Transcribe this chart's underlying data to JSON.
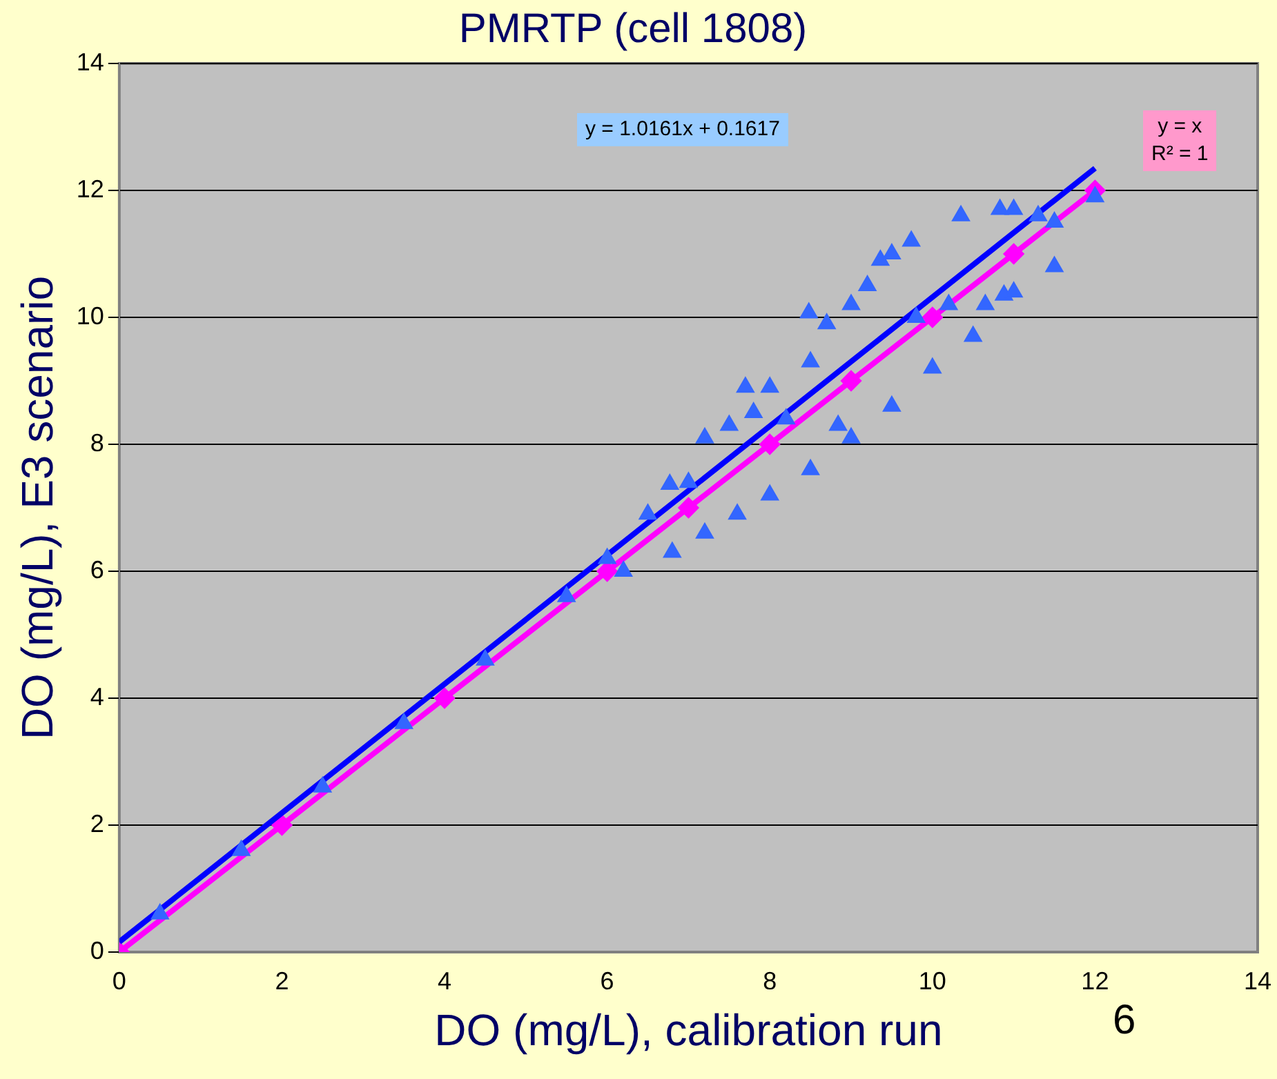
{
  "chart_data": {
    "type": "scatter",
    "title": "PMRTP (cell 1808)",
    "xlabel": "DO (mg/L), calibration run",
    "ylabel": "DO (mg/L), E3 scenario",
    "xlim": [
      0,
      14
    ],
    "xticks": [
      0,
      2,
      4,
      6,
      8,
      10,
      12,
      14
    ],
    "ylim": [
      0,
      14
    ],
    "yticks": [
      0,
      2,
      4,
      6,
      8,
      10,
      12,
      14
    ],
    "grid": "y",
    "legend": false,
    "annotations": [
      "y = 1.0161x + 0.1617",
      "y = x\nR² = 1",
      "6"
    ],
    "series": [
      {
        "type": "scatter",
        "marker": "triangle",
        "color": "#3366ff",
        "x": [
          0.5,
          1.5,
          2.5,
          3.5,
          4.5,
          5.5,
          6.0,
          6.2,
          6.5,
          6.77,
          6.8,
          7.0,
          7.2,
          7.2,
          7.5,
          7.6,
          7.7,
          7.8,
          8.0,
          8.0,
          8.2,
          8.48,
          8.5,
          8.5,
          8.7,
          8.84,
          9.0,
          9.0,
          9.2,
          9.36,
          9.5,
          9.5,
          9.74,
          9.8,
          10.0,
          10.2,
          10.35,
          10.5,
          10.65,
          10.83,
          10.88,
          11.0,
          11.0,
          11.3,
          11.5,
          11.5,
          12.0
        ],
        "values": [
          0.6,
          1.6,
          2.6,
          3.6,
          4.6,
          5.6,
          6.2,
          6.0,
          6.9,
          7.37,
          6.3,
          7.4,
          8.1,
          6.6,
          8.3,
          6.9,
          8.9,
          8.5,
          8.9,
          7.2,
          8.4,
          10.07,
          9.3,
          7.6,
          9.9,
          8.3,
          10.2,
          8.1,
          10.5,
          10.9,
          11.0,
          8.6,
          11.2,
          10.0,
          9.2,
          10.2,
          11.6,
          9.7,
          10.2,
          11.7,
          10.35,
          11.7,
          10.4,
          11.6,
          11.5,
          10.8,
          11.9
        ]
      },
      {
        "type": "line",
        "marker": "none",
        "line_style": "solid",
        "color": "#0000ff",
        "x": [
          0,
          12
        ],
        "values": [
          0.16,
          12.35
        ]
      },
      {
        "type": "line",
        "marker": "diamond",
        "line_style": "solid",
        "color": "#ff00ff",
        "x": [
          0,
          2,
          4,
          6,
          7,
          8,
          9,
          10,
          11,
          12
        ],
        "values": [
          0,
          2,
          4,
          6,
          7,
          8,
          9,
          10,
          11,
          12
        ]
      }
    ]
  }
}
